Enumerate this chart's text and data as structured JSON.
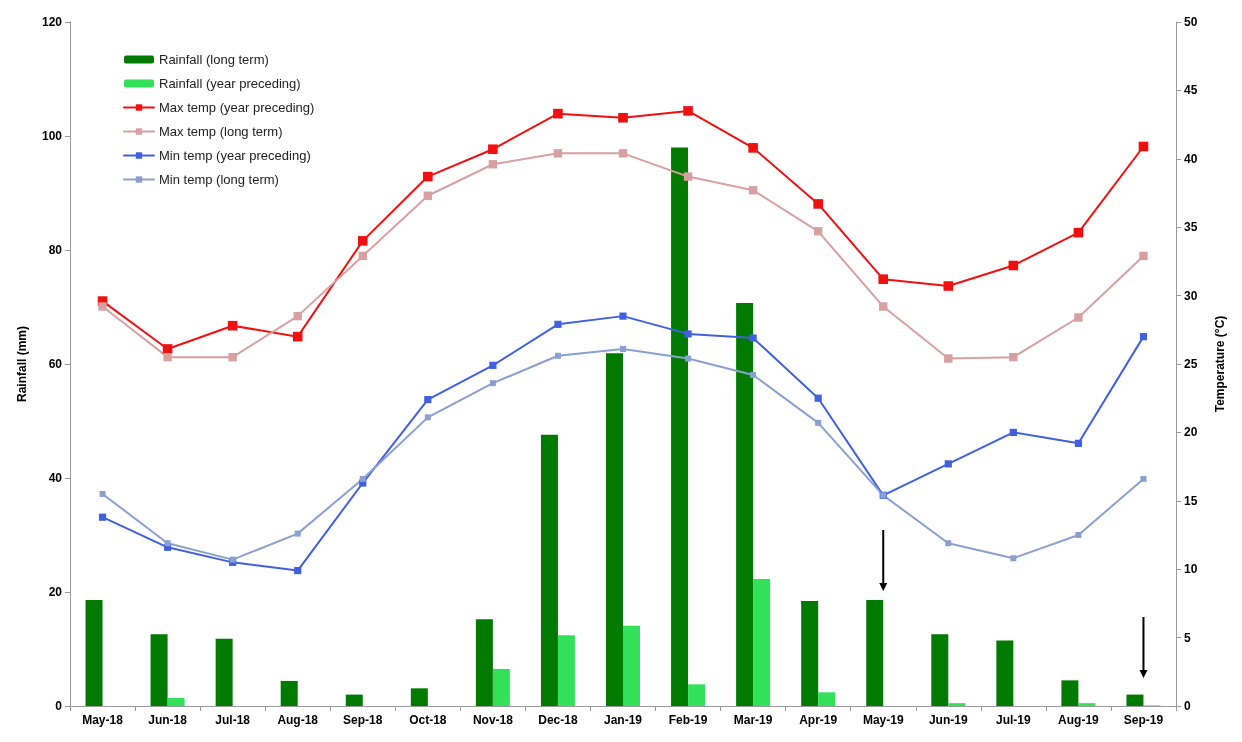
{
  "chart_data": {
    "type": "bar",
    "ylabel": "Rainfall (mm)",
    "y2label": "Temperature (°C)",
    "categories": [
      "May-18",
      "Jun-18",
      "Jul-18",
      "Aug-18",
      "Sep-18",
      "Oct-18",
      "Nov-18",
      "Dec-18",
      "Jan-19",
      "Feb-19",
      "Mar-19",
      "Apr-19",
      "May-19",
      "Jun-19",
      "Jul-19",
      "Aug-19",
      "Sep-19"
    ],
    "series": [
      {
        "name": "Rainfall (long term)",
        "color": "#007a00",
        "values": [
          18.6,
          12.6,
          11.8,
          4.4,
          2.0,
          3.1,
          15.2,
          47.6,
          61.9,
          98.0,
          70.7,
          18.4,
          18.6,
          12.6,
          11.5,
          4.5,
          2.0
        ]
      },
      {
        "name": "Rainfall (year preceding)",
        "color": "#33e05a",
        "values": [
          0,
          1.4,
          0,
          0,
          0,
          0,
          6.5,
          12.4,
          14.1,
          3.8,
          22.3,
          2.4,
          0,
          0.5,
          0,
          0.5,
          0.1
        ]
      },
      {
        "name": "Max temp (year preceding)",
        "type": "line",
        "axis": "y2",
        "color": "#f01010",
        "values": [
          29.6,
          26.1,
          27.8,
          27.0,
          34.0,
          38.7,
          40.7,
          43.3,
          43.0,
          43.5,
          40.8,
          36.7,
          31.2,
          30.7,
          32.2,
          34.6,
          40.9
        ]
      },
      {
        "name": "Max temp (long term)",
        "type": "line",
        "axis": "y2",
        "color": "#d8a0a0",
        "values": [
          29.2,
          25.5,
          25.5,
          28.5,
          32.9,
          37.3,
          39.6,
          40.4,
          40.4,
          38.7,
          37.7,
          34.7,
          29.2,
          25.4,
          25.5,
          28.4,
          32.9
        ]
      },
      {
        "name": "Min temp (year preceding)",
        "type": "line",
        "axis": "y2",
        "color": "#4060e0",
        "values": [
          13.8,
          11.6,
          10.5,
          9.9,
          16.3,
          22.4,
          24.9,
          27.9,
          28.5,
          27.2,
          26.9,
          22.5,
          15.4,
          17.7,
          20.0,
          19.2,
          27.0
        ]
      },
      {
        "name": "Min temp (long term)",
        "type": "line",
        "axis": "y2",
        "color": "#8aa0d0",
        "values": [
          15.5,
          11.9,
          10.7,
          12.6,
          16.6,
          21.1,
          23.6,
          25.6,
          26.1,
          25.4,
          24.2,
          20.7,
          15.4,
          11.9,
          10.8,
          12.5,
          16.6
        ]
      }
    ],
    "ylim": [
      0,
      120
    ],
    "yticks": [
      0,
      20,
      40,
      60,
      80,
      100,
      120
    ],
    "y2lim": [
      0,
      50
    ],
    "y2ticks": [
      0,
      5,
      10,
      15,
      20,
      25,
      30,
      35,
      40,
      45,
      50
    ],
    "grid": false,
    "legend": "top left",
    "marker": "square",
    "line_style": "solid"
  }
}
